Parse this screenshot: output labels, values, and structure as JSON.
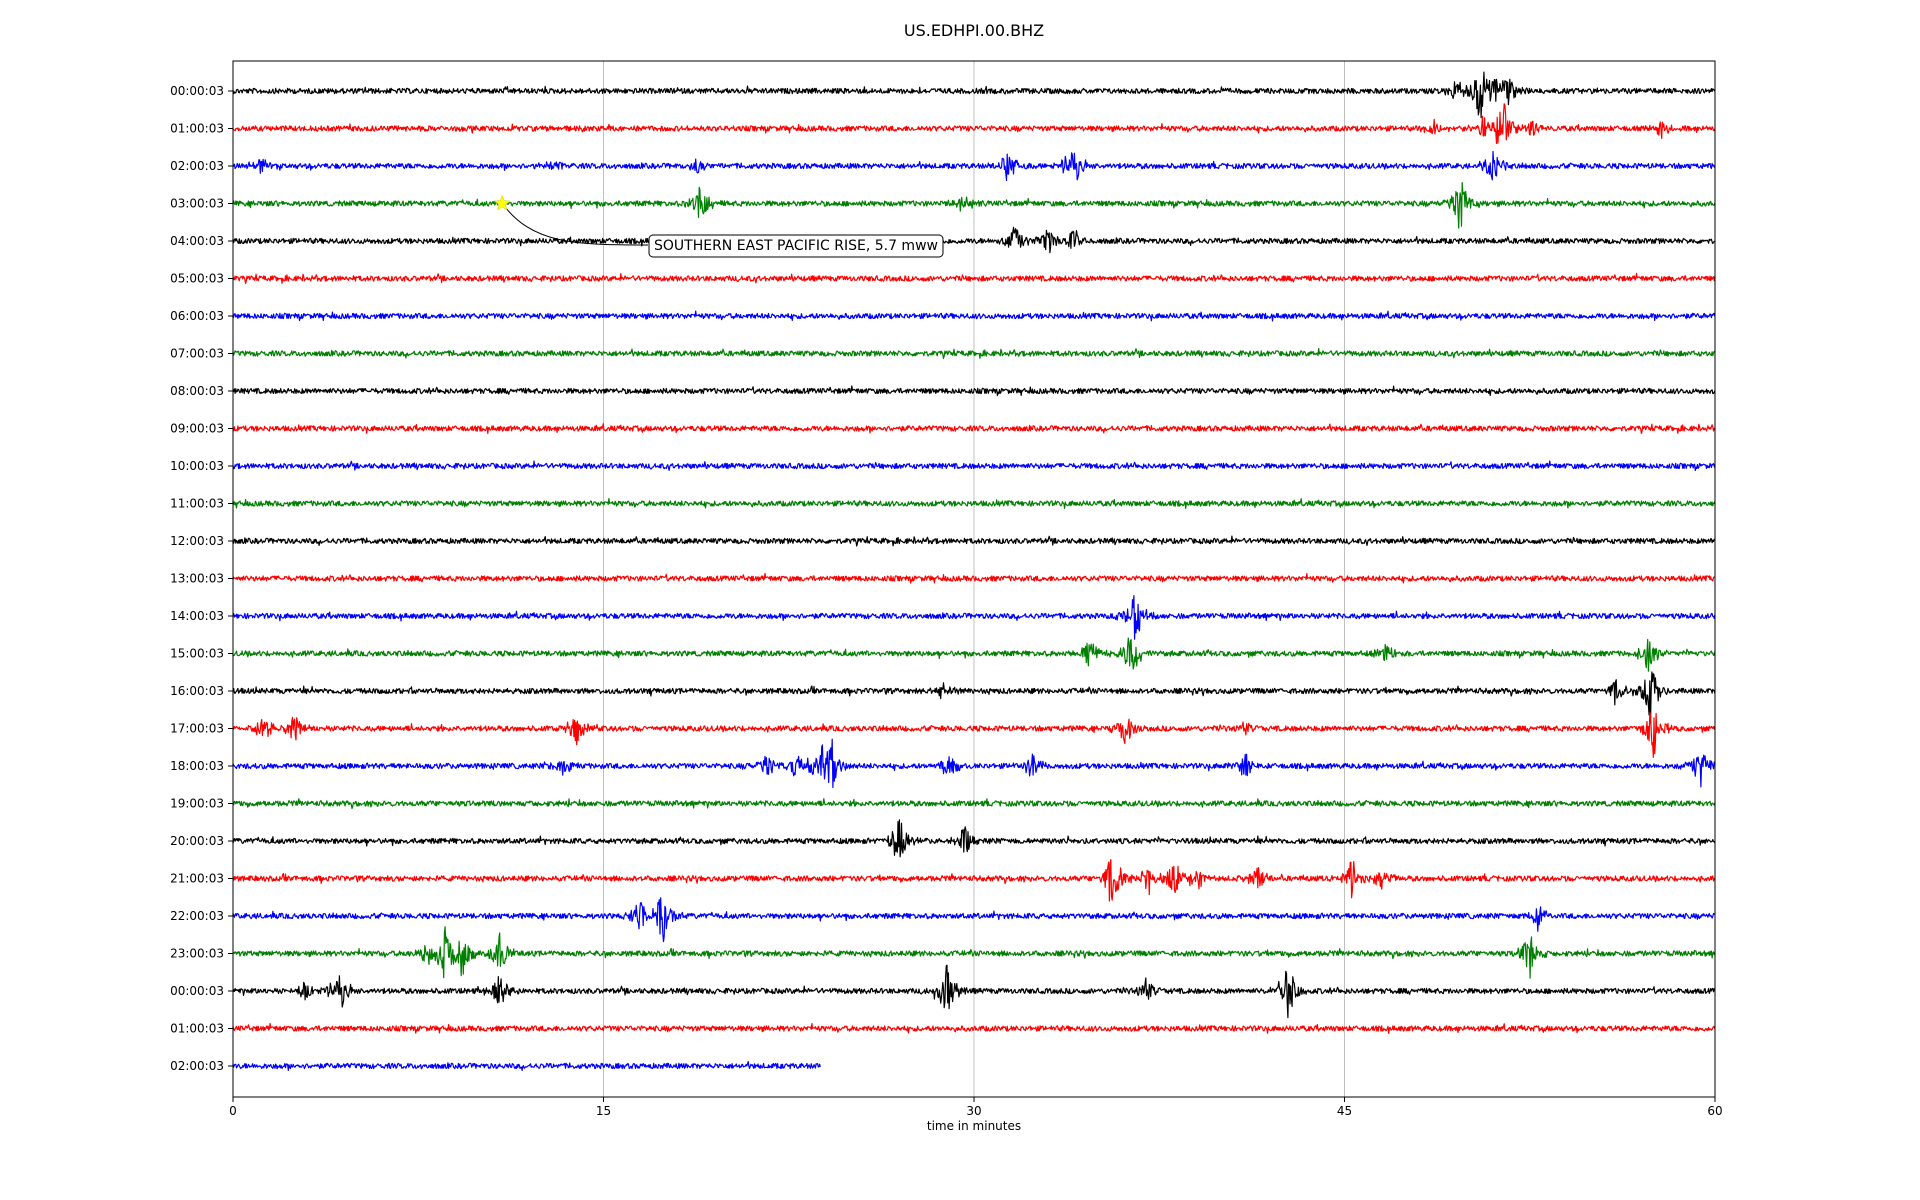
{
  "chart_data": {
    "type": "line",
    "title": "US.EDHPI.00.BHZ",
    "xlabel": "time in minutes",
    "ylabel": "",
    "xlim": [
      0,
      60
    ],
    "x_ticks": [
      0,
      15,
      30,
      45,
      60
    ],
    "grid": "vertical",
    "legend": "none",
    "colors_cycle": [
      "#000000",
      "#ff0000",
      "#0000ff",
      "#008000"
    ],
    "rows": [
      {
        "label": "00:00:03",
        "color": "#000000",
        "end_minute": 60,
        "events": [
          {
            "t": 50.5,
            "amp": 1.0
          },
          {
            "t": 51.1,
            "amp": 0.55
          },
          {
            "t": 51.6,
            "amp": 0.5
          },
          {
            "t": 49.5,
            "amp": 0.35
          }
        ]
      },
      {
        "label": "01:00:03",
        "color": "#ff0000",
        "end_minute": 60,
        "events": [
          {
            "t": 51.4,
            "amp": 1.0
          },
          {
            "t": 50.6,
            "amp": 0.4
          },
          {
            "t": 52.6,
            "amp": 0.3
          },
          {
            "t": 48.6,
            "amp": 0.25
          },
          {
            "t": 57.8,
            "amp": 0.25
          }
        ]
      },
      {
        "label": "02:00:03",
        "color": "#0000ff",
        "end_minute": 60,
        "events": [
          {
            "t": 34.0,
            "amp": 0.75
          },
          {
            "t": 31.4,
            "amp": 0.55
          },
          {
            "t": 51.0,
            "amp": 0.55
          },
          {
            "t": 1.2,
            "amp": 0.25
          },
          {
            "t": 13.0,
            "amp": 0.25
          },
          {
            "t": 18.8,
            "amp": 0.25
          }
        ]
      },
      {
        "label": "03:00:03",
        "color": "#008000",
        "end_minute": 60,
        "events": [
          {
            "t": 49.7,
            "amp": 1.0
          },
          {
            "t": 18.9,
            "amp": 0.6
          },
          {
            "t": 29.6,
            "amp": 0.35
          }
        ]
      },
      {
        "label": "04:00:03",
        "color": "#000000",
        "end_minute": 60,
        "events": [
          {
            "t": 31.7,
            "amp": 0.55
          },
          {
            "t": 33.0,
            "amp": 0.45
          },
          {
            "t": 34.0,
            "amp": 0.35
          }
        ]
      },
      {
        "label": "05:00:03",
        "color": "#ff0000",
        "end_minute": 60,
        "events": []
      },
      {
        "label": "06:00:03",
        "color": "#0000ff",
        "end_minute": 60,
        "events": []
      },
      {
        "label": "07:00:03",
        "color": "#008000",
        "end_minute": 60,
        "events": []
      },
      {
        "label": "08:00:03",
        "color": "#000000",
        "end_minute": 60,
        "events": []
      },
      {
        "label": "09:00:03",
        "color": "#ff0000",
        "end_minute": 60,
        "events": []
      },
      {
        "label": "10:00:03",
        "color": "#0000ff",
        "end_minute": 60,
        "events": []
      },
      {
        "label": "11:00:03",
        "color": "#008000",
        "end_minute": 60,
        "events": []
      },
      {
        "label": "12:00:03",
        "color": "#000000",
        "end_minute": 60,
        "events": []
      },
      {
        "label": "13:00:03",
        "color": "#ff0000",
        "end_minute": 60,
        "events": []
      },
      {
        "label": "14:00:03",
        "color": "#0000ff",
        "end_minute": 60,
        "events": [
          {
            "t": 36.5,
            "amp": 0.9
          }
        ]
      },
      {
        "label": "15:00:03",
        "color": "#008000",
        "end_minute": 60,
        "events": [
          {
            "t": 36.4,
            "amp": 0.8
          },
          {
            "t": 34.7,
            "amp": 0.5
          },
          {
            "t": 46.7,
            "amp": 0.35
          },
          {
            "t": 57.3,
            "amp": 0.7
          }
        ]
      },
      {
        "label": "16:00:03",
        "color": "#000000",
        "end_minute": 60,
        "events": [
          {
            "t": 57.4,
            "amp": 1.0
          },
          {
            "t": 56.0,
            "amp": 0.45
          },
          {
            "t": 28.7,
            "amp": 0.3
          }
        ]
      },
      {
        "label": "17:00:03",
        "color": "#ff0000",
        "end_minute": 60,
        "events": [
          {
            "t": 57.5,
            "amp": 0.9
          },
          {
            "t": 1.2,
            "amp": 0.45
          },
          {
            "t": 2.5,
            "amp": 0.5
          },
          {
            "t": 13.9,
            "amp": 0.5
          },
          {
            "t": 36.1,
            "amp": 0.55
          },
          {
            "t": 41.0,
            "amp": 0.25
          }
        ]
      },
      {
        "label": "18:00:03",
        "color": "#0000ff",
        "end_minute": 60,
        "events": [
          {
            "t": 24.2,
            "amp": 1.0
          },
          {
            "t": 23.7,
            "amp": 0.7
          },
          {
            "t": 22.8,
            "amp": 0.55
          },
          {
            "t": 21.6,
            "amp": 0.4
          },
          {
            "t": 59.4,
            "amp": 0.75
          },
          {
            "t": 29.0,
            "amp": 0.45
          },
          {
            "t": 32.4,
            "amp": 0.45
          },
          {
            "t": 41.0,
            "amp": 0.4
          },
          {
            "t": 13.4,
            "amp": 0.35
          }
        ]
      },
      {
        "label": "19:00:03",
        "color": "#008000",
        "end_minute": 60,
        "events": []
      },
      {
        "label": "20:00:03",
        "color": "#000000",
        "end_minute": 60,
        "events": [
          {
            "t": 27.0,
            "amp": 0.9
          },
          {
            "t": 29.6,
            "amp": 0.5
          }
        ]
      },
      {
        "label": "21:00:03",
        "color": "#ff0000",
        "end_minute": 60,
        "events": [
          {
            "t": 35.6,
            "amp": 1.0
          },
          {
            "t": 38.1,
            "amp": 0.7
          },
          {
            "t": 37.1,
            "amp": 0.55
          },
          {
            "t": 39.0,
            "amp": 0.45
          },
          {
            "t": 41.5,
            "amp": 0.45
          },
          {
            "t": 45.3,
            "amp": 0.6
          },
          {
            "t": 46.5,
            "amp": 0.4
          }
        ]
      },
      {
        "label": "22:00:03",
        "color": "#0000ff",
        "end_minute": 60,
        "events": [
          {
            "t": 17.4,
            "amp": 0.9
          },
          {
            "t": 16.5,
            "amp": 0.55
          },
          {
            "t": 52.8,
            "amp": 0.5
          }
        ]
      },
      {
        "label": "23:00:03",
        "color": "#008000",
        "end_minute": 60,
        "events": [
          {
            "t": 8.6,
            "amp": 0.95
          },
          {
            "t": 7.9,
            "amp": 0.6
          },
          {
            "t": 9.3,
            "amp": 0.7
          },
          {
            "t": 10.8,
            "amp": 0.6
          },
          {
            "t": 52.5,
            "amp": 0.7
          }
        ]
      },
      {
        "label": "00:00:03",
        "color": "#000000",
        "end_minute": 60,
        "events": [
          {
            "t": 42.7,
            "amp": 1.0
          },
          {
            "t": 28.9,
            "amp": 0.9
          },
          {
            "t": 4.3,
            "amp": 0.7
          },
          {
            "t": 10.8,
            "amp": 0.45
          },
          {
            "t": 37.0,
            "amp": 0.45
          },
          {
            "t": 2.9,
            "amp": 0.3
          }
        ]
      },
      {
        "label": "01:00:03",
        "color": "#ff0000",
        "end_minute": 60,
        "events": []
      },
      {
        "label": "02:00:03",
        "color": "#0000ff",
        "end_minute": 23.8,
        "events": []
      }
    ],
    "annotations": [
      {
        "text": "SOUTHERN EAST PACIFIC RISE, 5.7 mww",
        "row": 3,
        "t": 10.9,
        "marker": "star",
        "marker_color": "#ffff00"
      }
    ]
  }
}
